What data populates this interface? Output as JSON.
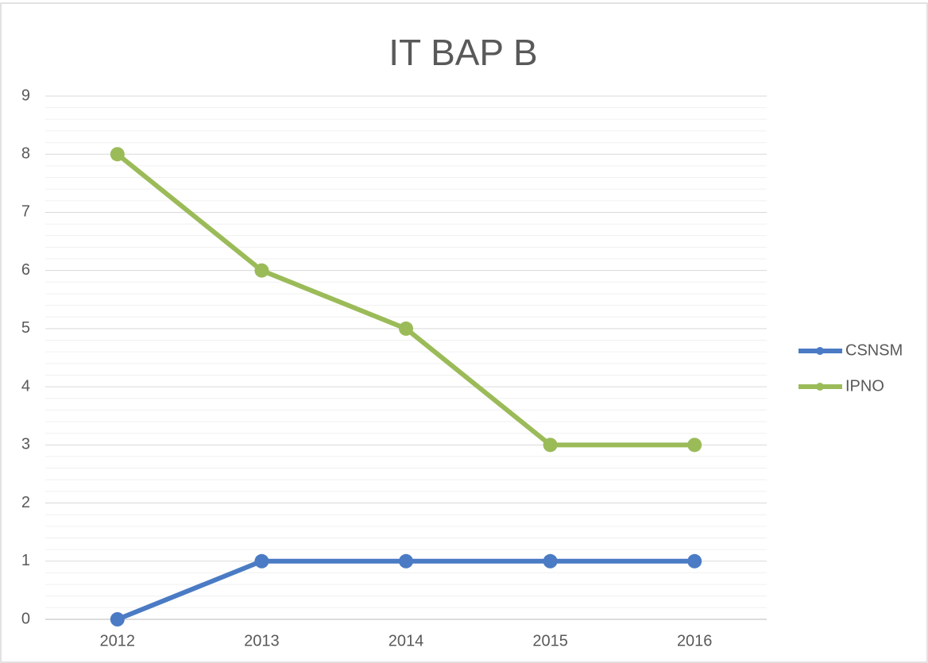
{
  "chart_data": {
    "type": "line",
    "title": "IT BAP B",
    "categories": [
      "2012",
      "2013",
      "2014",
      "2015",
      "2016"
    ],
    "series": [
      {
        "name": "CSNSM",
        "color": "#4a7bc4",
        "values": [
          0,
          1,
          1,
          1,
          1
        ]
      },
      {
        "name": "IPNO",
        "color": "#9bbb59",
        "values": [
          8,
          6,
          5,
          3,
          3
        ]
      }
    ],
    "ylim": [
      0,
      9
    ],
    "yticks": [
      0,
      1,
      2,
      3,
      4,
      5,
      6,
      7,
      8,
      9
    ],
    "grid": true,
    "minor_grid": true,
    "legend": "right"
  }
}
